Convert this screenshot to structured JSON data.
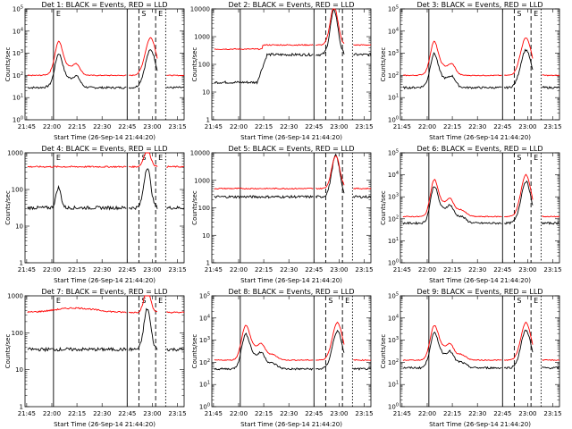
{
  "chart_data": [
    {
      "type": "line",
      "title": "Det 1: BLACK = Events, RED = LLD",
      "xlabel": "Start Time (26-Sep-14 21:44:20)",
      "ylabel": "Counts/sec",
      "log_y": true,
      "x_ticks": [
        "21:45",
        "22:00",
        "22:15",
        "22:30",
        "22:45",
        "23:00",
        "23:15"
      ],
      "y_ticks": [
        "10^0",
        "10^1",
        "10^2",
        "10^3",
        "10^4",
        "10^5"
      ],
      "ylim": [
        0,
        5
      ],
      "x_range_min": [
        1.5,
        95
      ],
      "markers": [
        {
          "label": "E",
          "x": 17,
          "style": "solid"
        },
        {
          "label": "",
          "x": 61,
          "style": "solid"
        },
        {
          "label": "S",
          "x": 68,
          "style": "dashed"
        },
        {
          "label": "E",
          "x": 78,
          "style": "dashed"
        },
        {
          "label": "",
          "x": 84,
          "style": "dotted"
        }
      ],
      "series": [
        {
          "name": "BLACK = Events",
          "color": "#000000",
          "profile": "p1",
          "base": 1.45
        },
        {
          "name": "RED = LLD",
          "color": "#ff0000",
          "profile": "p1",
          "base": 2.0
        }
      ]
    },
    {
      "type": "line",
      "title": "Det 2: BLACK = Events, RED = LLD",
      "xlabel": "Start Time (26-Sep-14 21:44:20)",
      "ylabel": "Counts/sec",
      "log_y": true,
      "x_ticks": [
        "21:45",
        "22:00",
        "22:15",
        "22:30",
        "22:45",
        "23:00",
        "23:15"
      ],
      "y_ticks": [
        "1",
        "10",
        "100",
        "1000",
        "10000"
      ],
      "ylim": [
        0,
        4
      ],
      "x_range_min": [
        1.5,
        95
      ],
      "markers": [
        {
          "label": "",
          "x": 17,
          "style": "solid"
        },
        {
          "label": "",
          "x": 61,
          "style": "solid"
        },
        {
          "label": "",
          "x": 68,
          "style": "dashed"
        },
        {
          "label": "",
          "x": 78,
          "style": "dashed"
        },
        {
          "label": "",
          "x": 84,
          "style": "dotted"
        }
      ],
      "series": [
        {
          "name": "BLACK = Events",
          "color": "#000000",
          "profile": "p2",
          "base": 1.35
        },
        {
          "name": "RED = LLD",
          "color": "#ff0000",
          "profile": "p2r",
          "base": 2.55
        }
      ]
    },
    {
      "type": "line",
      "title": "Det 3: BLACK = Events, RED = LLD",
      "xlabel": "Start Time (26-Sep-14 21:44:20)",
      "ylabel": "Counts/sec",
      "log_y": true,
      "x_ticks": [
        "21:45",
        "22:00",
        "22:15",
        "22:30",
        "22:45",
        "23:00",
        "23:15"
      ],
      "y_ticks": [
        "10^0",
        "10^1",
        "10^2",
        "10^3",
        "10^4",
        "10^5"
      ],
      "ylim": [
        0,
        5
      ],
      "x_range_min": [
        1.5,
        95
      ],
      "markers": [
        {
          "label": "",
          "x": 17,
          "style": "solid"
        },
        {
          "label": "",
          "x": 61,
          "style": "solid"
        },
        {
          "label": "S",
          "x": 68,
          "style": "dashed"
        },
        {
          "label": "E",
          "x": 78,
          "style": "dashed"
        },
        {
          "label": "",
          "x": 84,
          "style": "dotted"
        }
      ],
      "series": [
        {
          "name": "BLACK = Events",
          "color": "#000000",
          "profile": "p1",
          "base": 1.45
        },
        {
          "name": "RED = LLD",
          "color": "#ff0000",
          "profile": "p1",
          "base": 2.0
        }
      ]
    },
    {
      "type": "line",
      "title": "Det 4: BLACK = Events, RED = LLD",
      "xlabel": "Start Time (26-Sep-14 21:44:20)",
      "ylabel": "Counts/sec",
      "log_y": true,
      "x_ticks": [
        "21:45",
        "22:00",
        "22:15",
        "22:30",
        "22:45",
        "23:00",
        "23:15"
      ],
      "y_ticks": [
        "1",
        "10",
        "100",
        "1000"
      ],
      "ylim": [
        0,
        3
      ],
      "x_range_min": [
        1.5,
        95
      ],
      "markers": [
        {
          "label": "E",
          "x": 17,
          "style": "solid"
        },
        {
          "label": "",
          "x": 61,
          "style": "solid"
        },
        {
          "label": "S",
          "x": 68,
          "style": "dashed"
        },
        {
          "label": "E",
          "x": 78,
          "style": "dashed"
        },
        {
          "label": "",
          "x": 84,
          "style": "dotted"
        }
      ],
      "series": [
        {
          "name": "BLACK = Events",
          "color": "#000000",
          "profile": "p4",
          "base": 1.5
        },
        {
          "name": "RED = LLD",
          "color": "#ff0000",
          "profile": "p4r",
          "base": 2.62
        }
      ]
    },
    {
      "type": "line",
      "title": "Det 5: BLACK = Events, RED = LLD",
      "xlabel": "Start Time (26-Sep-14 21:44:20)",
      "ylabel": "Counts/sec",
      "log_y": true,
      "x_ticks": [
        "21:45",
        "22:00",
        "22:15",
        "22:30",
        "22:45",
        "23:00",
        "23:15"
      ],
      "y_ticks": [
        "1",
        "10",
        "100",
        "1000",
        "10000"
      ],
      "ylim": [
        0,
        4
      ],
      "x_range_min": [
        1.5,
        95
      ],
      "markers": [
        {
          "label": "",
          "x": 17,
          "style": "solid"
        },
        {
          "label": "",
          "x": 61,
          "style": "solid"
        },
        {
          "label": "",
          "x": 68,
          "style": "dashed"
        },
        {
          "label": "",
          "x": 78,
          "style": "dashed"
        },
        {
          "label": "",
          "x": 84,
          "style": "dotted"
        }
      ],
      "series": [
        {
          "name": "BLACK = Events",
          "color": "#000000",
          "profile": "p5",
          "base": 2.4
        },
        {
          "name": "RED = LLD",
          "color": "#ff0000",
          "profile": "p5r",
          "base": 2.7
        }
      ]
    },
    {
      "type": "line",
      "title": "Det 6: BLACK = Events, RED = LLD",
      "xlabel": "Start Time (26-Sep-14 21:44:20)",
      "ylabel": "Counts/sec",
      "log_y": true,
      "x_ticks": [
        "21:45",
        "22:00",
        "22:15",
        "22:30",
        "22:45",
        "23:00",
        "23:15"
      ],
      "y_ticks": [
        "10^0",
        "10^1",
        "10^2",
        "10^3",
        "10^4",
        "10^5"
      ],
      "ylim": [
        0,
        5
      ],
      "x_range_min": [
        1.5,
        95
      ],
      "markers": [
        {
          "label": "",
          "x": 17,
          "style": "solid"
        },
        {
          "label": "",
          "x": 61,
          "style": "solid"
        },
        {
          "label": "S",
          "x": 68,
          "style": "dashed"
        },
        {
          "label": "E",
          "x": 78,
          "style": "dashed"
        },
        {
          "label": "",
          "x": 84,
          "style": "dotted"
        }
      ],
      "series": [
        {
          "name": "BLACK = Events",
          "color": "#000000",
          "profile": "p6",
          "base": 1.8
        },
        {
          "name": "RED = LLD",
          "color": "#ff0000",
          "profile": "p6",
          "base": 2.1
        }
      ]
    },
    {
      "type": "line",
      "title": "Det 7: BLACK = Events, RED = LLD",
      "xlabel": "Start Time (26-Sep-14 21:44:20)",
      "ylabel": "Counts/sec",
      "log_y": true,
      "x_ticks": [
        "21:45",
        "22:00",
        "22:15",
        "22:30",
        "22:45",
        "23:00",
        "23:15"
      ],
      "y_ticks": [
        "1",
        "10",
        "100",
        "1000"
      ],
      "ylim": [
        0,
        3
      ],
      "x_range_min": [
        1.5,
        95
      ],
      "markers": [
        {
          "label": "E",
          "x": 17,
          "style": "solid"
        },
        {
          "label": "",
          "x": 61,
          "style": "solid"
        },
        {
          "label": "S",
          "x": 68,
          "style": "dashed"
        },
        {
          "label": "E",
          "x": 78,
          "style": "dashed"
        },
        {
          "label": "",
          "x": 84,
          "style": "dotted"
        }
      ],
      "series": [
        {
          "name": "BLACK = Events",
          "color": "#000000",
          "profile": "p7",
          "base": 1.55
        },
        {
          "name": "RED = LLD",
          "color": "#ff0000",
          "profile": "p7r",
          "base": 2.55
        }
      ]
    },
    {
      "type": "line",
      "title": "Det 8: BLACK = Events, RED = LLD",
      "xlabel": "Start Time (26-Sep-14 21:44:20)",
      "ylabel": "Counts/sec",
      "log_y": true,
      "x_ticks": [
        "21:45",
        "22:00",
        "22:15",
        "22:30",
        "22:45",
        "23:00",
        "23:15"
      ],
      "y_ticks": [
        "10^0",
        "10^1",
        "10^2",
        "10^3",
        "10^4",
        "10^5"
      ],
      "ylim": [
        0,
        5
      ],
      "x_range_min": [
        1.5,
        95
      ],
      "markers": [
        {
          "label": "",
          "x": 17,
          "style": "solid"
        },
        {
          "label": "",
          "x": 61,
          "style": "solid"
        },
        {
          "label": "S",
          "x": 68,
          "style": "dashed"
        },
        {
          "label": "E",
          "x": 78,
          "style": "dashed"
        },
        {
          "label": "",
          "x": 84,
          "style": "dotted"
        }
      ],
      "series": [
        {
          "name": "BLACK = Events",
          "color": "#000000",
          "profile": "p8",
          "base": 1.7
        },
        {
          "name": "RED = LLD",
          "color": "#ff0000",
          "profile": "p8",
          "base": 2.1
        }
      ]
    },
    {
      "type": "line",
      "title": "Det 9: BLACK = Events, RED = LLD",
      "xlabel": "Start Time (26-Sep-14 21:44:20)",
      "ylabel": "Counts/sec",
      "log_y": true,
      "x_ticks": [
        "21:45",
        "22:00",
        "22:15",
        "22:30",
        "22:45",
        "23:00",
        "23:15"
      ],
      "y_ticks": [
        "10^0",
        "10^1",
        "10^2",
        "10^3",
        "10^4",
        "10^5"
      ],
      "ylim": [
        0,
        5
      ],
      "x_range_min": [
        1.5,
        95
      ],
      "markers": [
        {
          "label": "",
          "x": 17,
          "style": "solid"
        },
        {
          "label": "",
          "x": 61,
          "style": "solid"
        },
        {
          "label": "S",
          "x": 68,
          "style": "dashed"
        },
        {
          "label": "E",
          "x": 78,
          "style": "dashed"
        },
        {
          "label": "",
          "x": 84,
          "style": "dotted"
        }
      ],
      "series": [
        {
          "name": "BLACK = Events",
          "color": "#000000",
          "profile": "p8",
          "base": 1.75
        },
        {
          "name": "RED = LLD",
          "color": "#ff0000",
          "profile": "p8",
          "base": 2.1
        }
      ]
    }
  ]
}
